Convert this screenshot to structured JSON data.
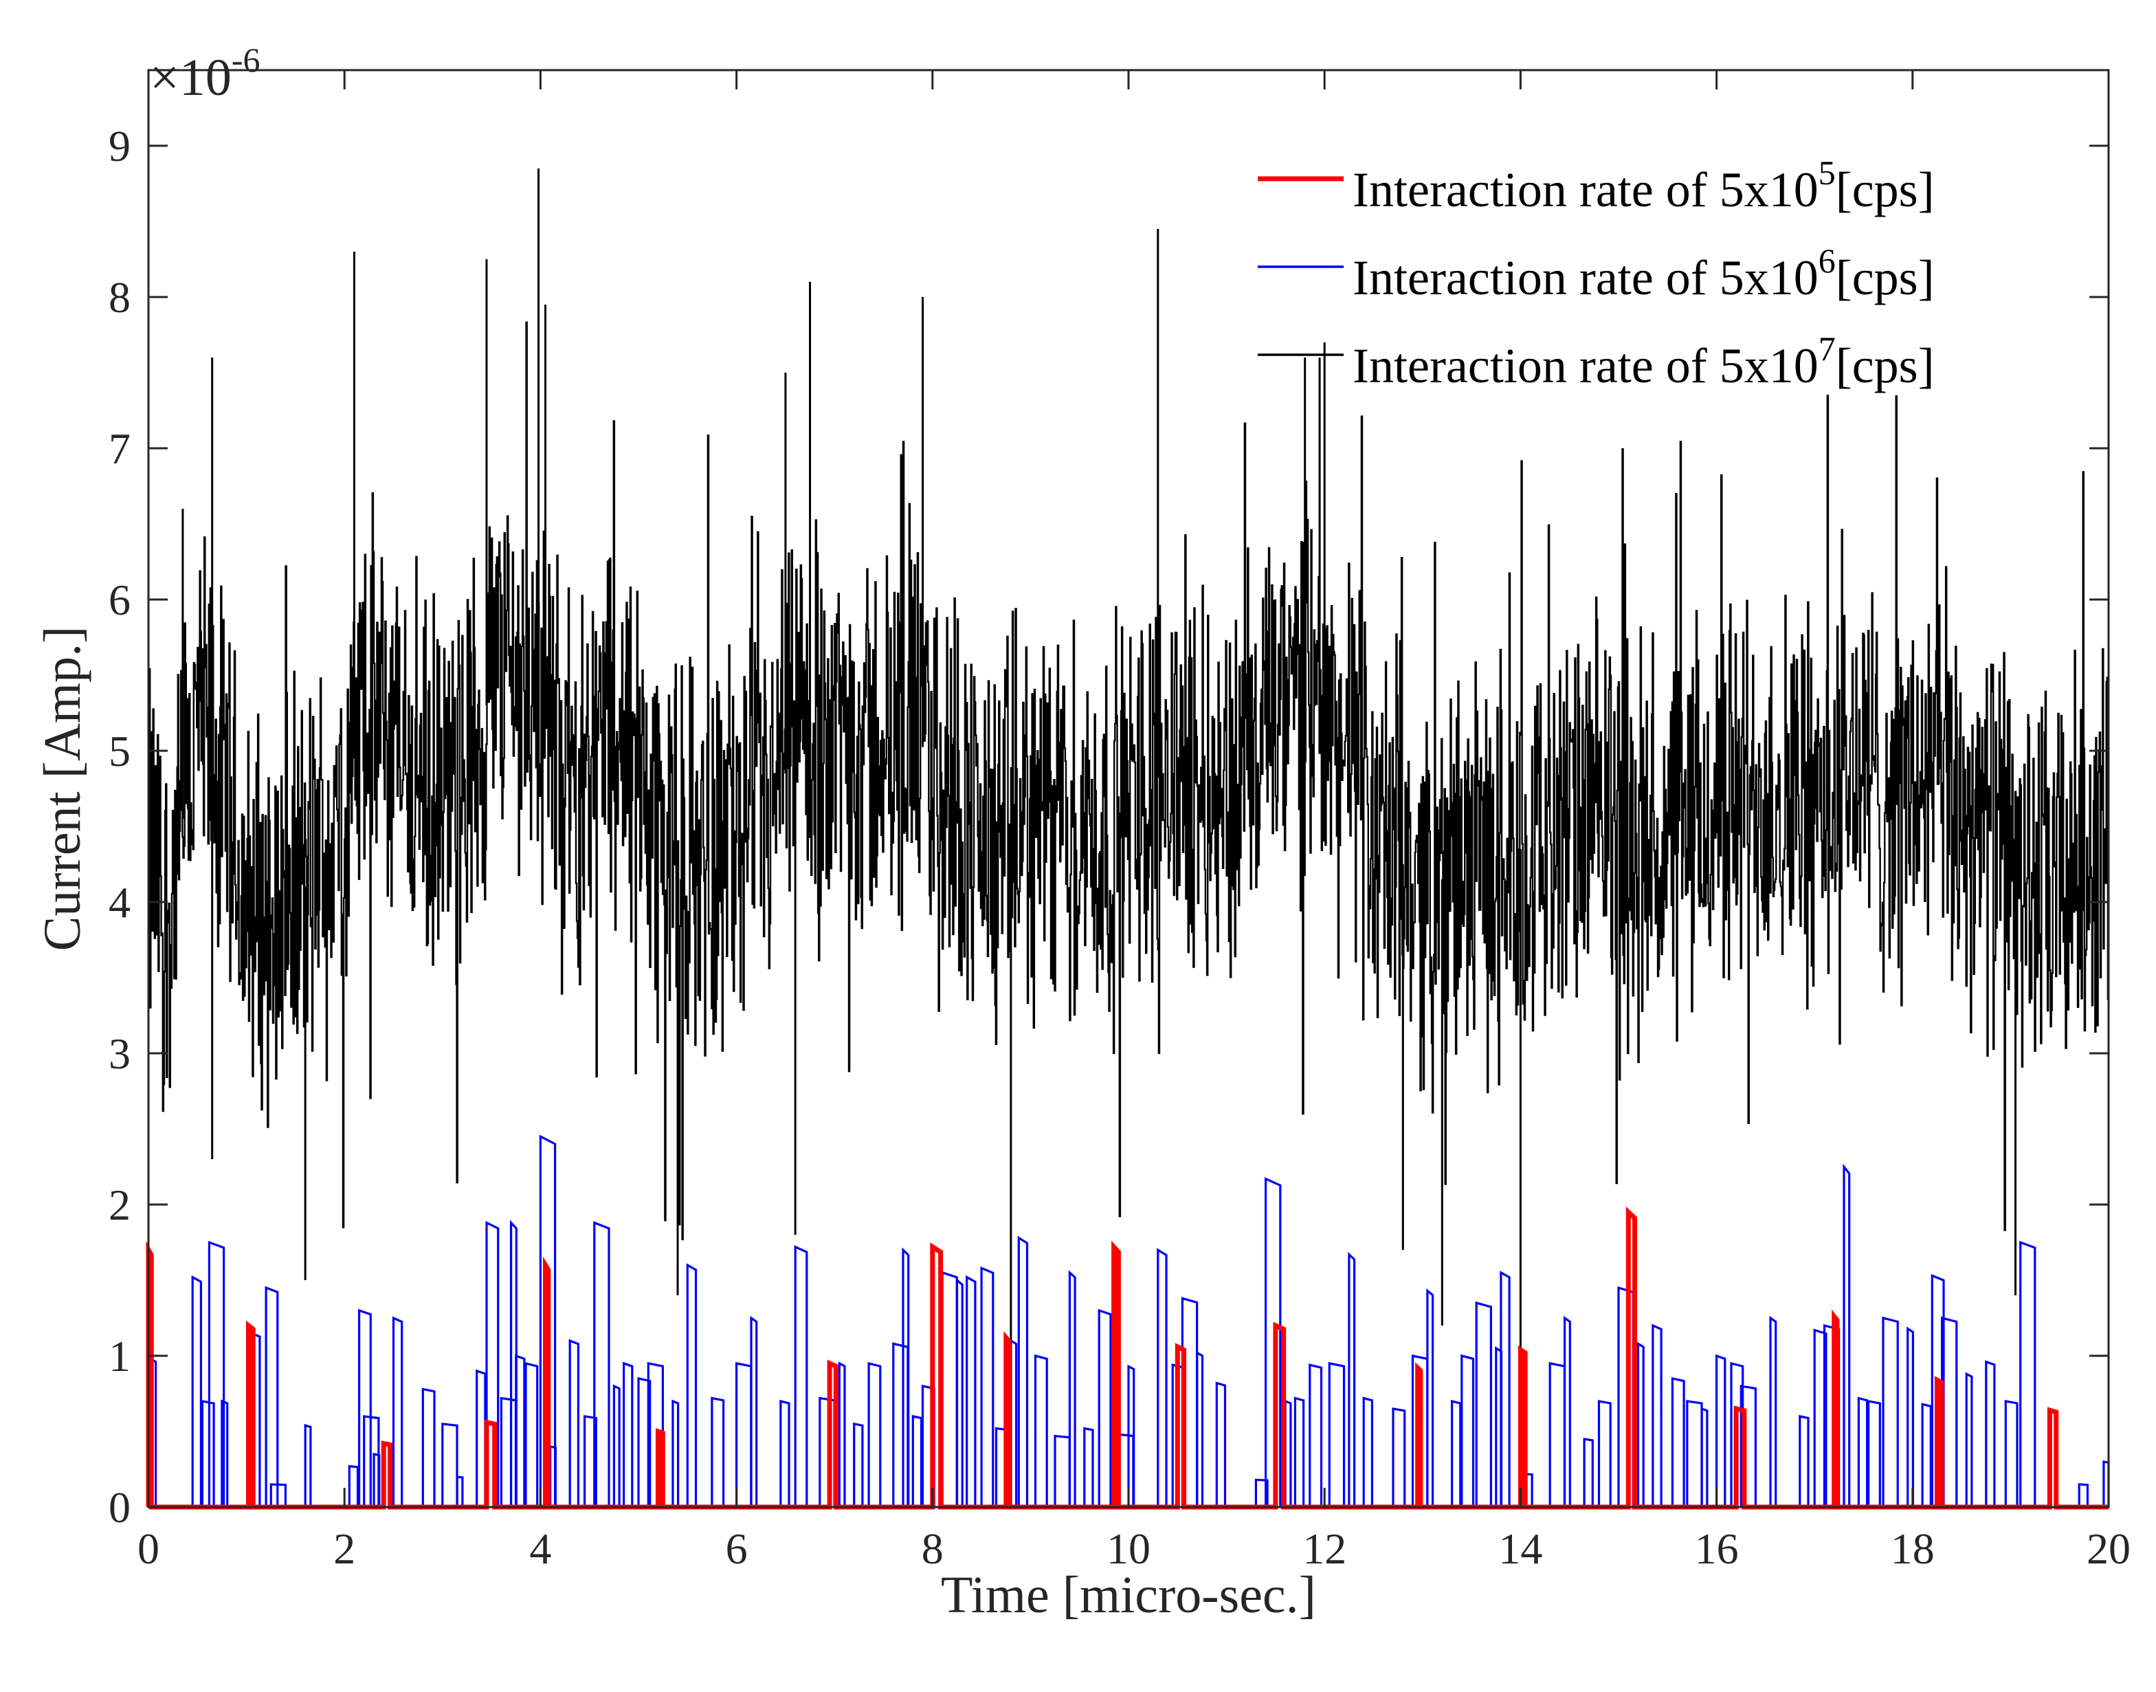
{
  "chart_data": {
    "type": "line",
    "title": "",
    "xlabel": "Time [micro-sec.]",
    "ylabel": "Current [Amp.]",
    "y_exponent_label": "×10",
    "y_exponent": "-6",
    "xlim": [
      0,
      20
    ],
    "ylim": [
      0,
      9.5
    ],
    "x_ticks": [
      0,
      2,
      4,
      6,
      8,
      10,
      12,
      14,
      16,
      18,
      20
    ],
    "y_ticks": [
      0,
      1,
      2,
      3,
      4,
      5,
      6,
      7,
      8,
      9
    ],
    "grid": false,
    "legend_position": "top-right",
    "series": [
      {
        "name": "Interaction rate of 5x10^5[cps]",
        "legend_base": "Interaction rate of 5x10",
        "legend_exp": "5",
        "legend_tail": "[cps]",
        "color": "#ff0000",
        "style": "pulses",
        "pulses": [
          [
            0.0,
            1.7
          ],
          [
            1.02,
            1.2
          ],
          [
            2.4,
            0.42
          ],
          [
            3.45,
            0.56
          ],
          [
            4.05,
            1.6
          ],
          [
            5.2,
            0.5
          ],
          [
            6.95,
            0.95
          ],
          [
            8.0,
            1.72
          ],
          [
            8.75,
            1.12
          ],
          [
            9.85,
            1.72
          ],
          [
            10.5,
            1.06
          ],
          [
            11.5,
            1.2
          ],
          [
            12.95,
            0.92
          ],
          [
            14.0,
            1.04
          ],
          [
            15.1,
            1.95
          ],
          [
            16.2,
            0.65
          ],
          [
            17.2,
            1.26
          ],
          [
            18.25,
            0.84
          ],
          [
            19.4,
            0.64
          ]
        ]
      },
      {
        "name": "Interaction rate of 5x10^6[cps]",
        "legend_base": "Interaction rate of 5x10",
        "legend_exp": "6",
        "legend_tail": "[cps]",
        "color": "#0000ff",
        "style": "pulses",
        "pulses": [
          [
            0.02,
            0.98
          ],
          [
            0.45,
            1.52
          ],
          [
            0.55,
            0.7
          ],
          [
            0.62,
            1.75
          ],
          [
            0.75,
            0.7
          ],
          [
            1.05,
            1.15
          ],
          [
            1.2,
            1.45
          ],
          [
            1.25,
            0.15
          ],
          [
            1.6,
            0.54
          ],
          [
            2.05,
            0.27
          ],
          [
            2.15,
            1.3
          ],
          [
            2.2,
            0.6
          ],
          [
            2.3,
            0.35
          ],
          [
            2.5,
            1.25
          ],
          [
            2.8,
            0.78
          ],
          [
            3.0,
            0.55
          ],
          [
            3.15,
            0.2
          ],
          [
            3.35,
            0.9
          ],
          [
            3.45,
            1.88
          ],
          [
            3.6,
            0.72
          ],
          [
            3.7,
            1.88
          ],
          [
            3.75,
            1.0
          ],
          [
            3.85,
            0.95
          ],
          [
            4.0,
            2.45
          ],
          [
            4.1,
            0.4
          ],
          [
            4.3,
            1.1
          ],
          [
            4.45,
            0.6
          ],
          [
            4.55,
            1.88
          ],
          [
            4.75,
            0.8
          ],
          [
            4.85,
            0.95
          ],
          [
            5.0,
            0.85
          ],
          [
            5.1,
            0.95
          ],
          [
            5.35,
            0.7
          ],
          [
            5.5,
            1.6
          ],
          [
            5.75,
            0.72
          ],
          [
            6.0,
            0.95
          ],
          [
            6.15,
            1.25
          ],
          [
            6.45,
            0.7
          ],
          [
            6.6,
            1.72
          ],
          [
            6.85,
            0.72
          ],
          [
            7.05,
            0.95
          ],
          [
            7.2,
            0.55
          ],
          [
            7.35,
            0.95
          ],
          [
            7.6,
            1.08
          ],
          [
            7.7,
            1.7
          ],
          [
            7.8,
            0.6
          ],
          [
            7.9,
            0.8
          ],
          [
            8.1,
            1.55
          ],
          [
            8.25,
            1.5
          ],
          [
            8.35,
            1.52
          ],
          [
            8.5,
            1.58
          ],
          [
            8.65,
            0.52
          ],
          [
            8.8,
            1.1
          ],
          [
            8.88,
            1.78
          ],
          [
            9.05,
            1.0
          ],
          [
            9.25,
            0.47
          ],
          [
            9.4,
            1.55
          ],
          [
            9.55,
            0.52
          ],
          [
            9.7,
            1.3
          ],
          [
            9.9,
            0.48
          ],
          [
            10.0,
            0.93
          ],
          [
            10.3,
            1.7
          ],
          [
            10.45,
            0.94
          ],
          [
            10.55,
            1.38
          ],
          [
            10.7,
            1.02
          ],
          [
            10.9,
            0.82
          ],
          [
            11.3,
            0.18
          ],
          [
            11.4,
            2.17
          ],
          [
            11.6,
            0.7
          ],
          [
            11.7,
            0.72
          ],
          [
            11.85,
            0.94
          ],
          [
            12.05,
            0.95
          ],
          [
            12.25,
            1.67
          ],
          [
            12.4,
            0.72
          ],
          [
            12.7,
            0.65
          ],
          [
            12.9,
            1.0
          ],
          [
            13.05,
            1.43
          ],
          [
            13.3,
            0.7
          ],
          [
            13.4,
            1.0
          ],
          [
            13.55,
            1.35
          ],
          [
            13.75,
            1.05
          ],
          [
            13.8,
            1.55
          ],
          [
            14.0,
            0.22
          ],
          [
            14.3,
            0.95
          ],
          [
            14.45,
            1.25
          ],
          [
            14.65,
            0.45
          ],
          [
            14.8,
            0.7
          ],
          [
            15.0,
            1.45
          ],
          [
            15.2,
            1.08
          ],
          [
            15.35,
            1.2
          ],
          [
            15.55,
            0.85
          ],
          [
            15.7,
            0.7
          ],
          [
            15.85,
            0.65
          ],
          [
            16.0,
            1.0
          ],
          [
            16.15,
            0.95
          ],
          [
            16.25,
            0.8
          ],
          [
            16.55,
            1.25
          ],
          [
            16.85,
            0.6
          ],
          [
            17.0,
            1.17
          ],
          [
            17.1,
            1.2
          ],
          [
            17.3,
            2.25
          ],
          [
            17.45,
            0.72
          ],
          [
            17.55,
            0.7
          ],
          [
            17.7,
            1.25
          ],
          [
            17.95,
            1.18
          ],
          [
            18.1,
            0.68
          ],
          [
            18.2,
            1.53
          ],
          [
            18.3,
            1.25
          ],
          [
            18.55,
            0.88
          ],
          [
            18.75,
            0.96
          ],
          [
            18.95,
            0.7
          ],
          [
            19.1,
            1.75
          ],
          [
            19.4,
            0.64
          ],
          [
            19.7,
            0.15
          ],
          [
            19.95,
            0.3
          ]
        ]
      },
      {
        "name": "Interaction rate of 5x10^7[cps]",
        "legend_base": "Interaction rate of 5x10",
        "legend_exp": "7",
        "legend_tail": "[cps]",
        "color": "#000000",
        "style": "noisy-line",
        "baseline": [
          [
            0,
            4.3
          ],
          [
            0.2,
            3.9
          ],
          [
            0.5,
            5.2
          ],
          [
            0.8,
            4.6
          ],
          [
            1.0,
            3.9
          ],
          [
            1.3,
            4.0
          ],
          [
            1.6,
            4.1
          ],
          [
            2.0,
            4.6
          ],
          [
            2.2,
            5.3
          ],
          [
            2.6,
            5.0
          ],
          [
            3.0,
            4.5
          ],
          [
            3.3,
            5.0
          ],
          [
            3.6,
            5.6
          ],
          [
            4.0,
            5.4
          ],
          [
            4.3,
            4.7
          ],
          [
            4.6,
            5.2
          ],
          [
            5.0,
            4.9
          ],
          [
            5.4,
            4.2
          ],
          [
            5.8,
            4.4
          ],
          [
            6.2,
            4.4
          ],
          [
            6.6,
            5.0
          ],
          [
            7.0,
            5.2
          ],
          [
            7.4,
            5.0
          ],
          [
            7.8,
            5.1
          ],
          [
            8.2,
            4.8
          ],
          [
            8.6,
            4.3
          ],
          [
            9.0,
            4.6
          ],
          [
            9.4,
            4.5
          ],
          [
            9.8,
            4.4
          ],
          [
            10.2,
            4.8
          ],
          [
            10.6,
            4.9
          ],
          [
            11.0,
            4.7
          ],
          [
            11.4,
            5.1
          ],
          [
            11.8,
            5.4
          ],
          [
            12.2,
            5.0
          ],
          [
            12.6,
            4.4
          ],
          [
            13.0,
            4.1
          ],
          [
            13.4,
            4.2
          ],
          [
            13.8,
            4.3
          ],
          [
            14.2,
            4.4
          ],
          [
            14.6,
            4.5
          ],
          [
            15.0,
            4.6
          ],
          [
            15.4,
            4.3
          ],
          [
            15.8,
            4.5
          ],
          [
            16.2,
            4.7
          ],
          [
            16.6,
            4.8
          ],
          [
            17.0,
            4.6
          ],
          [
            17.4,
            4.9
          ],
          [
            17.8,
            4.7
          ],
          [
            18.2,
            4.8
          ],
          [
            18.6,
            4.6
          ],
          [
            19.0,
            4.3
          ],
          [
            19.4,
            4.0
          ],
          [
            19.8,
            4.4
          ],
          [
            20.0,
            4.3
          ]
        ],
        "amplitude": 1.6,
        "spikes": [
          [
            0.35,
            6.6
          ],
          [
            0.65,
            7.6
          ],
          [
            2.1,
            8.3
          ],
          [
            3.45,
            8.25
          ],
          [
            3.98,
            8.85
          ],
          [
            4.05,
            7.95
          ],
          [
            6.5,
            7.5
          ],
          [
            6.75,
            8.1
          ],
          [
            7.9,
            8.0
          ],
          [
            10.3,
            8.45
          ],
          [
            11.8,
            7.6
          ],
          [
            11.95,
            7.6
          ],
          [
            12.0,
            7.7
          ]
        ],
        "dips": [
          [
            0.65,
            2.3
          ],
          [
            1.6,
            1.5
          ],
          [
            5.4,
            1.4
          ],
          [
            6.6,
            1.8
          ],
          [
            8.8,
            0.9
          ],
          [
            12.8,
            1.7
          ],
          [
            13.2,
            1.2
          ],
          [
            14.0,
            0.8
          ],
          [
            19.05,
            1.4
          ],
          [
            20.0,
            2.2
          ]
        ]
      }
    ]
  }
}
